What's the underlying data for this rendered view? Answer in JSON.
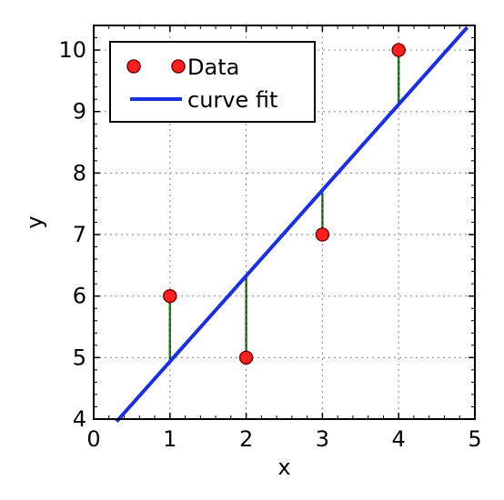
{
  "chart_data": {
    "type": "scatter",
    "title": "",
    "xlabel": "x",
    "ylabel": "y",
    "xlim": [
      0,
      5
    ],
    "ylim": [
      4,
      10.4
    ],
    "xticks": [
      0,
      1,
      2,
      3,
      4,
      5
    ],
    "yticks": [
      4,
      5,
      6,
      7,
      8,
      9,
      10
    ],
    "grid": true,
    "legend_position": "top-left",
    "series": [
      {
        "name": "Data",
        "kind": "points",
        "x": [
          1,
          2,
          3,
          4
        ],
        "y": [
          6,
          5,
          7,
          10
        ],
        "color": "#ff2020"
      },
      {
        "name": "curve fit",
        "kind": "line",
        "x": [
          0.3,
          4.9
        ],
        "y": [
          3.96,
          10.37
        ],
        "color": "#1a2ee6"
      }
    ],
    "residuals": {
      "color": "#1e8a1e",
      "segments": [
        {
          "x": 1,
          "y_from": 6,
          "y_to": 4.9
        },
        {
          "x": 2,
          "y_from": 5,
          "y_to": 6.3
        },
        {
          "x": 3,
          "y_from": 7,
          "y_to": 7.7
        },
        {
          "x": 4,
          "y_from": 10,
          "y_to": 9.1
        }
      ]
    }
  }
}
